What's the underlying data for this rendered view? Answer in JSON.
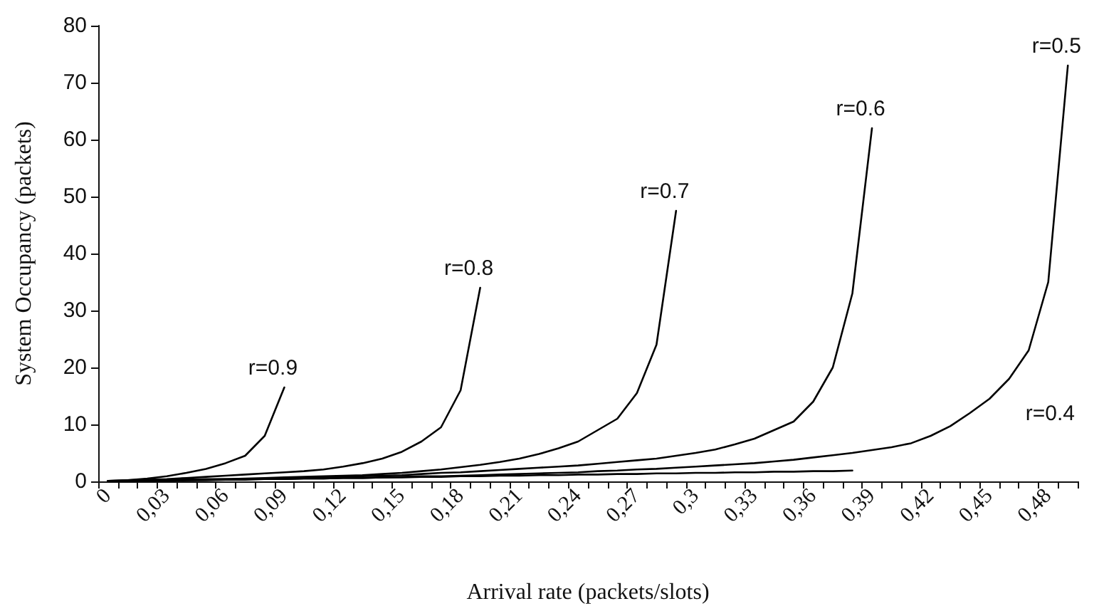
{
  "chart_data": {
    "type": "line",
    "xlabel": "Arrival rate (packets/slots)",
    "ylabel": "System Occupancy (packets)",
    "categories": [
      "0",
      null,
      null,
      "0,03",
      null,
      null,
      "0,06",
      null,
      null,
      "0,09",
      null,
      null,
      "0,12",
      null,
      null,
      "0,15",
      null,
      null,
      "0,18",
      null,
      null,
      "0,21",
      null,
      null,
      "0,24",
      null,
      null,
      "0,27",
      null,
      null,
      "0,3",
      null,
      null,
      "0,33",
      null,
      null,
      "0,36",
      null,
      null,
      "0,39",
      null,
      null,
      "0,42",
      null,
      null,
      "0,45",
      null,
      null,
      "0,48",
      null
    ],
    "ylim": [
      0,
      80
    ],
    "yticks": [
      0,
      10,
      20,
      30,
      40,
      50,
      60,
      70,
      80
    ],
    "annotations": [
      "r=0.4"
    ],
    "grid": false,
    "legend": false,
    "marker": "none",
    "line_style": "solid",
    "series": [
      {
        "name": "r=0.9",
        "color": "#000000",
        "values": [
          0.1,
          0.2,
          0.5,
          0.9,
          1.5,
          2.2,
          3.2,
          4.5,
          8,
          16.5,
          null,
          null,
          null,
          null,
          null,
          null,
          null,
          null,
          null,
          null,
          null,
          null,
          null,
          null,
          null,
          null,
          null,
          null,
          null,
          null,
          null,
          null,
          null,
          null,
          null,
          null,
          null,
          null,
          null,
          null,
          null,
          null,
          null,
          null,
          null,
          null,
          null,
          null,
          null,
          null
        ]
      },
      {
        "name": "r=0.8",
        "color": "#000000",
        "values": [
          0.1,
          0.2,
          0.3,
          0.4,
          0.6,
          0.8,
          1,
          1.2,
          1.4,
          1.6,
          1.8,
          2.1,
          2.6,
          3.2,
          4,
          5.2,
          7,
          9.5,
          16,
          34,
          null,
          null,
          null,
          null,
          null,
          null,
          null,
          null,
          null,
          null,
          null,
          null,
          null,
          null,
          null,
          null,
          null,
          null,
          null,
          null,
          null,
          null,
          null,
          null,
          null,
          null,
          null,
          null,
          null,
          null
        ]
      },
      {
        "name": "r=0.7",
        "color": "#000000",
        "values": [
          0.1,
          0.1,
          0.2,
          0.2,
          0.3,
          0.4,
          0.4,
          0.5,
          0.6,
          0.7,
          0.8,
          0.9,
          1,
          1.1,
          1.3,
          1.5,
          1.8,
          2.1,
          2.5,
          2.9,
          3.4,
          4,
          4.8,
          5.8,
          7,
          9,
          11,
          15.5,
          24,
          47.5,
          null,
          null,
          null,
          null,
          null,
          null,
          null,
          null,
          null,
          null,
          null,
          null,
          null,
          null,
          null,
          null,
          null,
          null,
          null,
          null
        ]
      },
      {
        "name": "r=0.6",
        "color": "#000000",
        "values": [
          0.1,
          0.1,
          0.2,
          0.2,
          0.3,
          0.3,
          0.4,
          0.4,
          0.5,
          0.5,
          0.6,
          0.7,
          0.8,
          0.9,
          1,
          1.1,
          1.3,
          1.5,
          1.6,
          1.8,
          2,
          2.2,
          2.4,
          2.6,
          2.8,
          3.1,
          3.4,
          3.7,
          4,
          4.5,
          5,
          5.6,
          6.5,
          7.5,
          9,
          10.5,
          14,
          20,
          33,
          62,
          null,
          null,
          null,
          null,
          null,
          null,
          null,
          null,
          null,
          null
        ]
      },
      {
        "name": "r=0.5",
        "color": "#000000",
        "values": [
          0.1,
          0.1,
          0.1,
          0.2,
          0.2,
          0.3,
          0.3,
          0.4,
          0.4,
          0.4,
          0.5,
          0.5,
          0.6,
          0.6,
          0.7,
          0.8,
          0.9,
          0.9,
          1,
          1.1,
          1.2,
          1.3,
          1.4,
          1.5,
          1.6,
          1.8,
          1.9,
          2.1,
          2.2,
          2.4,
          2.6,
          2.8,
          3,
          3.2,
          3.5,
          3.8,
          4.2,
          4.6,
          5,
          5.5,
          6,
          6.7,
          8,
          9.7,
          12,
          14.5,
          18,
          23,
          35,
          73
        ]
      },
      {
        "color": "#000000",
        "values": [
          0,
          0,
          0.1,
          0.1,
          0.2,
          0.2,
          0.3,
          0.3,
          0.4,
          0.4,
          0.5,
          0.5,
          0.6,
          0.6,
          0.7,
          0.7,
          0.8,
          0.8,
          0.9,
          0.9,
          1,
          1,
          1.1,
          1.1,
          1.2,
          1.2,
          1.3,
          1.3,
          1.4,
          1.4,
          1.5,
          1.5,
          1.6,
          1.6,
          1.7,
          1.7,
          1.8,
          1.8,
          1.9,
          null,
          null,
          null,
          null,
          null,
          null,
          null,
          null,
          null,
          null,
          null
        ]
      }
    ]
  }
}
